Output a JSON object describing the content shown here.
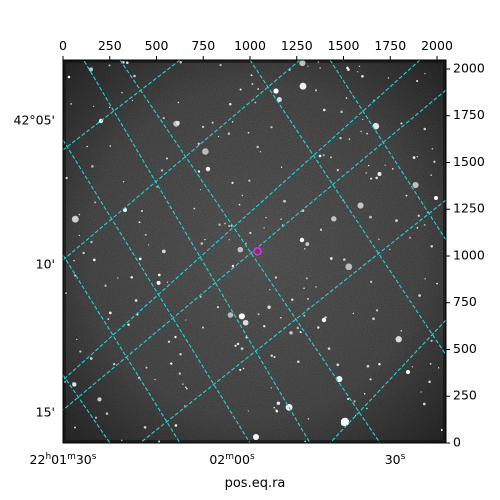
{
  "chart_data": {
    "type": "image",
    "xlabel": "pos.eq.ra",
    "top_axis": {
      "ticks": [
        0,
        250,
        500,
        750,
        1000,
        1250,
        1500,
        1750,
        2000
      ],
      "range": [
        0,
        2048
      ]
    },
    "right_axis": {
      "ticks": [
        0,
        250,
        500,
        750,
        1000,
        1250,
        1500,
        1750,
        2000
      ],
      "range": [
        0,
        2048
      ]
    },
    "left_axis_labels": [
      "42°05'",
      "10'",
      "15'"
    ],
    "bottom_axis_labels": [
      {
        "h": "22",
        "hs": "h",
        "m": "01",
        "ms": "m",
        "s": "30",
        "ss": "s"
      },
      {
        "m": "02",
        "ms": "m",
        "s": "00",
        "ss": "s"
      },
      {
        "s": "30",
        "ss": "s"
      }
    ],
    "grid": true,
    "grid_color": "#22d3d3",
    "marker": {
      "shape": "circle",
      "color": "#e02cf0",
      "pixel": [
        1040,
        1025
      ]
    }
  }
}
